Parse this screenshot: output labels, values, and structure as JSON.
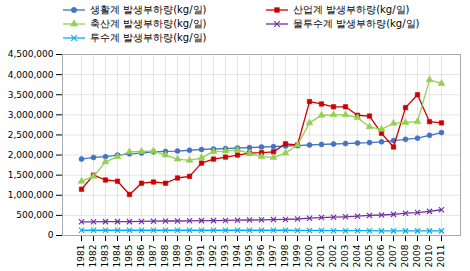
{
  "chart_data": {
    "type": "line",
    "categories": [
      "1981",
      "1982",
      "1983",
      "1984",
      "1985",
      "1986",
      "1987",
      "1988",
      "1989",
      "1990",
      "1991",
      "1992",
      "1993",
      "1994",
      "1995",
      "1996",
      "1997",
      "1998",
      "1999",
      "2000",
      "2001",
      "2002",
      "2003",
      "2004",
      "2005",
      "2006",
      "2007",
      "2008",
      "2009",
      "2010",
      "2011"
    ],
    "series": [
      {
        "name": "생활계 발생부하량(kg/일)",
        "color": "#4472c4",
        "marker": "circle",
        "values": [
          1900000,
          1940000,
          1960000,
          2000000,
          2030000,
          2050000,
          2080000,
          2090000,
          2100000,
          2120000,
          2140000,
          2150000,
          2160000,
          2175000,
          2185000,
          2200000,
          2210000,
          2225000,
          2235000,
          2250000,
          2265000,
          2275000,
          2285000,
          2300000,
          2310000,
          2330000,
          2360000,
          2390000,
          2420000,
          2490000,
          2560000
        ]
      },
      {
        "name": "산업계 발생부하량(kg/일)",
        "color": "#cc0000",
        "marker": "square",
        "values": [
          1150000,
          1500000,
          1380000,
          1350000,
          1020000,
          1300000,
          1330000,
          1300000,
          1430000,
          1470000,
          1800000,
          1900000,
          1950000,
          2000000,
          2050000,
          2060000,
          2080000,
          2280000,
          2250000,
          3330000,
          3270000,
          3200000,
          3200000,
          2990000,
          2970000,
          2540000,
          2200000,
          3180000,
          3500000,
          2830000,
          2800000
        ]
      },
      {
        "name": "축산계 발생부하량(kg/일)",
        "color": "#92d050",
        "marker": "triangle",
        "values": [
          1350000,
          1470000,
          1830000,
          1960000,
          2080000,
          2090000,
          2100000,
          2000000,
          1900000,
          1870000,
          1930000,
          2090000,
          2100000,
          2130000,
          2040000,
          1960000,
          1940000,
          2050000,
          2250000,
          2800000,
          2990000,
          3000000,
          3000000,
          2930000,
          2700000,
          2640000,
          2790000,
          2810000,
          2830000,
          3870000,
          3780000
        ]
      },
      {
        "name": "물투수계 발생부하량(kg/일)",
        "color": "#7030a0",
        "marker": "x",
        "values": [
          340000,
          340000,
          345000,
          345000,
          345000,
          350000,
          355000,
          360000,
          360000,
          365000,
          370000,
          370000,
          375000,
          380000,
          385000,
          390000,
          395000,
          400000,
          410000,
          430000,
          445000,
          455000,
          465000,
          480000,
          500000,
          510000,
          525000,
          555000,
          570000,
          600000,
          640000
        ]
      },
      {
        "name": "투수계 발생부하량(kg/일)",
        "color": "#00b0f0",
        "marker": "x",
        "values": [
          130000,
          130000,
          130000,
          130000,
          130000,
          130000,
          130000,
          130000,
          130000,
          130000,
          130000,
          130000,
          130000,
          130000,
          130000,
          130000,
          130000,
          130000,
          125000,
          125000,
          125000,
          120000,
          120000,
          120000,
          120000,
          115000,
          115000,
          115000,
          115000,
          115000,
          115000
        ]
      }
    ],
    "ylim": [
      0,
      4500000
    ],
    "yticks": [
      0,
      {
        "value": 500000,
        "label": "500,000"
      },
      {
        "value": 1000000,
        "label": "1,000,000"
      },
      {
        "value": 1500000,
        "label": "1,500,000"
      },
      {
        "value": 2000000,
        "label": "2,000,000"
      },
      {
        "value": 2500000,
        "label": "2,500,000"
      },
      {
        "value": 3000000,
        "label": "3,000,000"
      },
      {
        "value": 3500000,
        "label": "3,500,000"
      },
      {
        "value": 4000000,
        "label": "4,000,000"
      },
      {
        "value": 4500000,
        "label": "4,500,000"
      }
    ],
    "grid": true,
    "legend": "upper left"
  }
}
